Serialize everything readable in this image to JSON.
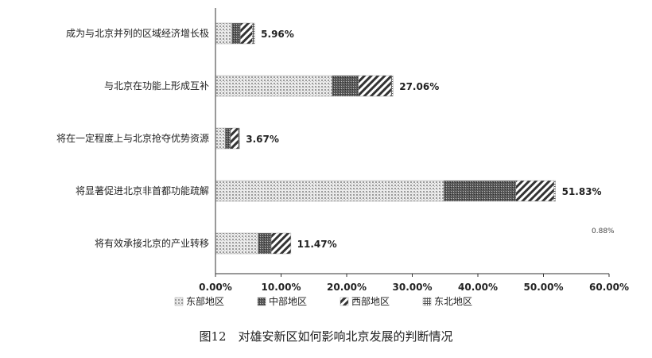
{
  "chart_data": {
    "type": "bar",
    "orientation": "horizontal",
    "stacked": true,
    "categories": [
      "成为与北京并列的区域经济增长极",
      "与北京在功能上形成互补",
      "将在一定程度上与北京抢夺优势资源",
      "将显著促进北京非首都功能疏解",
      "将有效承接北京的产业转移"
    ],
    "series": [
      {
        "name": "东部地区",
        "pattern": "pattern-dots",
        "values": [
          2.5,
          17.8,
          1.5,
          34.8,
          6.5
        ]
      },
      {
        "name": "中部地区",
        "pattern": "pattern-dense",
        "values": [
          1.3,
          4.0,
          0.8,
          11.0,
          2.0
        ]
      },
      {
        "name": "西部地区",
        "pattern": "pattern-diag",
        "values": [
          1.8,
          5.0,
          1.2,
          5.8,
          3.0
        ]
      },
      {
        "name": "东北地区",
        "pattern": "pattern-grid",
        "values": [
          0.36,
          0.26,
          0.17,
          0.23,
          0
        ]
      }
    ],
    "totals": [
      5.96,
      27.06,
      3.67,
      51.83,
      11.47
    ],
    "data_labels": [
      "5.96%",
      "27.06%",
      "3.67%",
      "51.83%",
      "11.47%"
    ],
    "xlim": [
      0,
      60
    ],
    "xticks": [
      "0.00%",
      "10.00%",
      "20.00%",
      "30.00%",
      "40.00%",
      "50.00%",
      "60.00%"
    ],
    "annotation": "0.88%",
    "legend_position": "bottom",
    "grid": false
  },
  "caption": "图12　对雄安新区如何影响北京发展的判断情况"
}
